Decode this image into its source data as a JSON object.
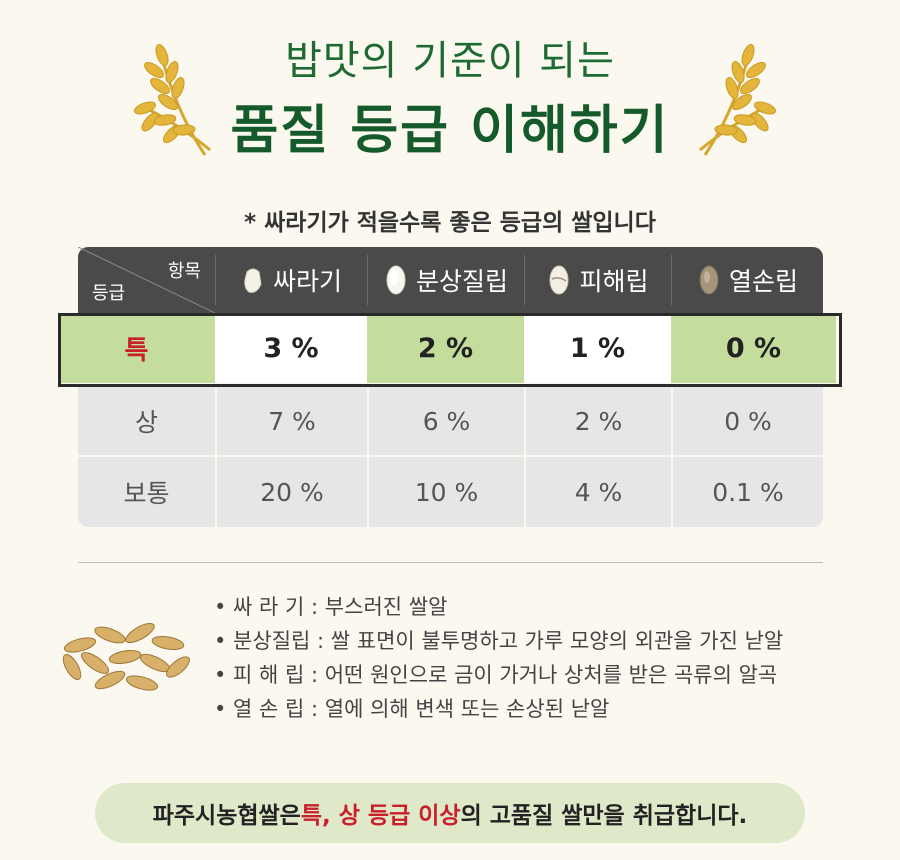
{
  "title": {
    "line1": "밥맛의 기준이 되는",
    "line2": "품질 등급 이해하기"
  },
  "note": "* 싸라기가 적을수록 좋은 등급의 쌀입니다",
  "table": {
    "corner_item": "항목",
    "corner_grade": "등급",
    "columns": [
      {
        "label": "싸라기",
        "icon": "broken-rice-icon"
      },
      {
        "label": "분상질립",
        "icon": "chalky-rice-icon"
      },
      {
        "label": "피해립",
        "icon": "damaged-rice-icon"
      },
      {
        "label": "열손립",
        "icon": "heat-damaged-rice-icon"
      }
    ],
    "rows": [
      {
        "grade": "특",
        "values": [
          "3 %",
          "2 %",
          "1 %",
          "0 %"
        ]
      },
      {
        "grade": "상",
        "values": [
          "7 %",
          "6 %",
          "2 %",
          "0 %"
        ]
      },
      {
        "grade": "보통",
        "values": [
          "20 %",
          "10 %",
          "4 %",
          "0.1 %"
        ]
      }
    ]
  },
  "definitions": [
    "• 싸 라 기 : 부스러진 쌀알",
    "• 분상질립 : 쌀 표면이 불투명하고 가루 모양의 외관을 가진 낟알",
    "• 피 해 립 : 어떤 원인으로 금이 가거나 상처를 받은 곡류의 알곡",
    "• 열 손 립 : 열에 의해 변색 또는 손상된 낟알"
  ],
  "footer": {
    "part1": "파주시농협쌀은 ",
    "part2": "특, 상 등급 이상",
    "part3": "의 고품질 쌀만을 취급합니다."
  },
  "colors": {
    "title_green": "#1d6a33",
    "highlight_green": "#c4dc9c",
    "header_dark": "#4b4a4a",
    "grade_red": "#c8202a",
    "pill_bg": "#dfe8c9"
  }
}
